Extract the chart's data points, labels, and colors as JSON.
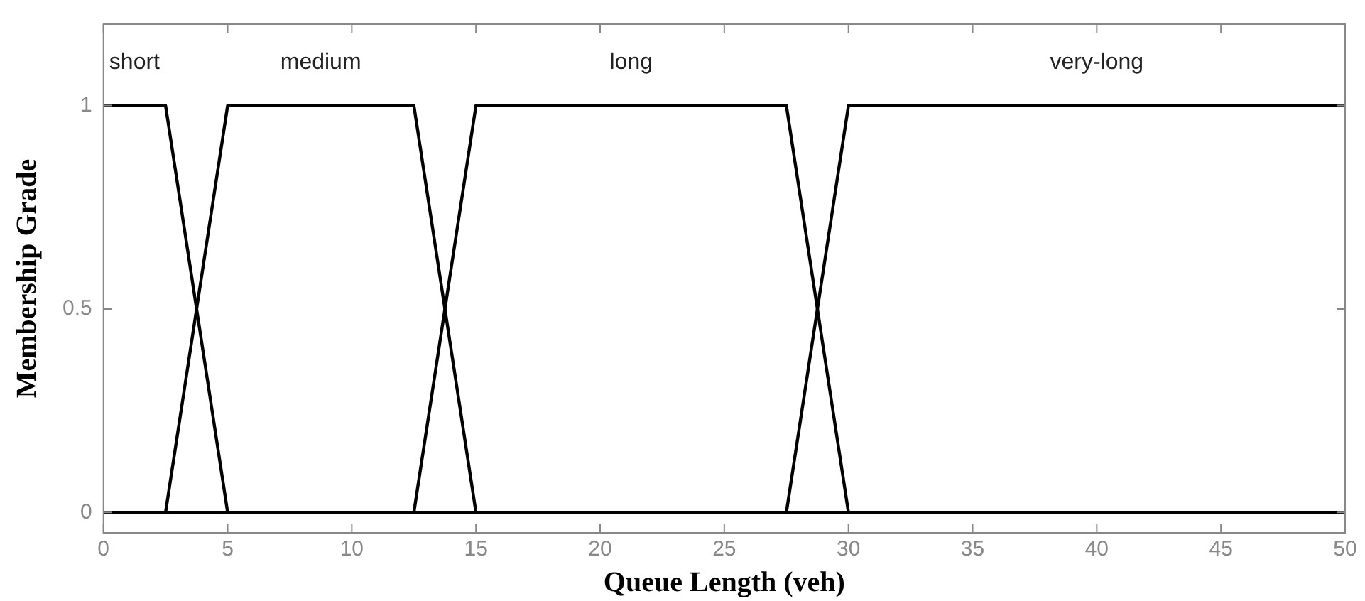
{
  "chart_data": {
    "type": "line",
    "xlabel": "Queue Length (veh)",
    "ylabel": "Membership Grade",
    "xlim": [
      0,
      50
    ],
    "xticks": [
      0,
      5,
      10,
      15,
      20,
      25,
      30,
      35,
      40,
      45,
      50
    ],
    "ylim": [
      -0.05,
      1.2
    ],
    "yticks": [
      0,
      0.5,
      1
    ],
    "grid": false,
    "legend": false,
    "marker": "none",
    "line_style": "solid",
    "series": [
      {
        "name": "short",
        "color": "#000000",
        "x": [
          0,
          2.5,
          5,
          50
        ],
        "values": [
          1,
          1,
          0,
          0
        ]
      },
      {
        "name": "medium",
        "color": "#000000",
        "x": [
          0,
          2.5,
          5,
          12.5,
          15,
          50
        ],
        "values": [
          0,
          0,
          1,
          1,
          0,
          0
        ]
      },
      {
        "name": "long",
        "color": "#000000",
        "x": [
          0,
          12.5,
          15,
          27.5,
          30,
          50
        ],
        "values": [
          0,
          0,
          1,
          1,
          0,
          0
        ]
      },
      {
        "name": "very-long",
        "color": "#000000",
        "x": [
          0,
          27.5,
          30,
          50
        ],
        "values": [
          0,
          0,
          1,
          1
        ]
      }
    ]
  }
}
